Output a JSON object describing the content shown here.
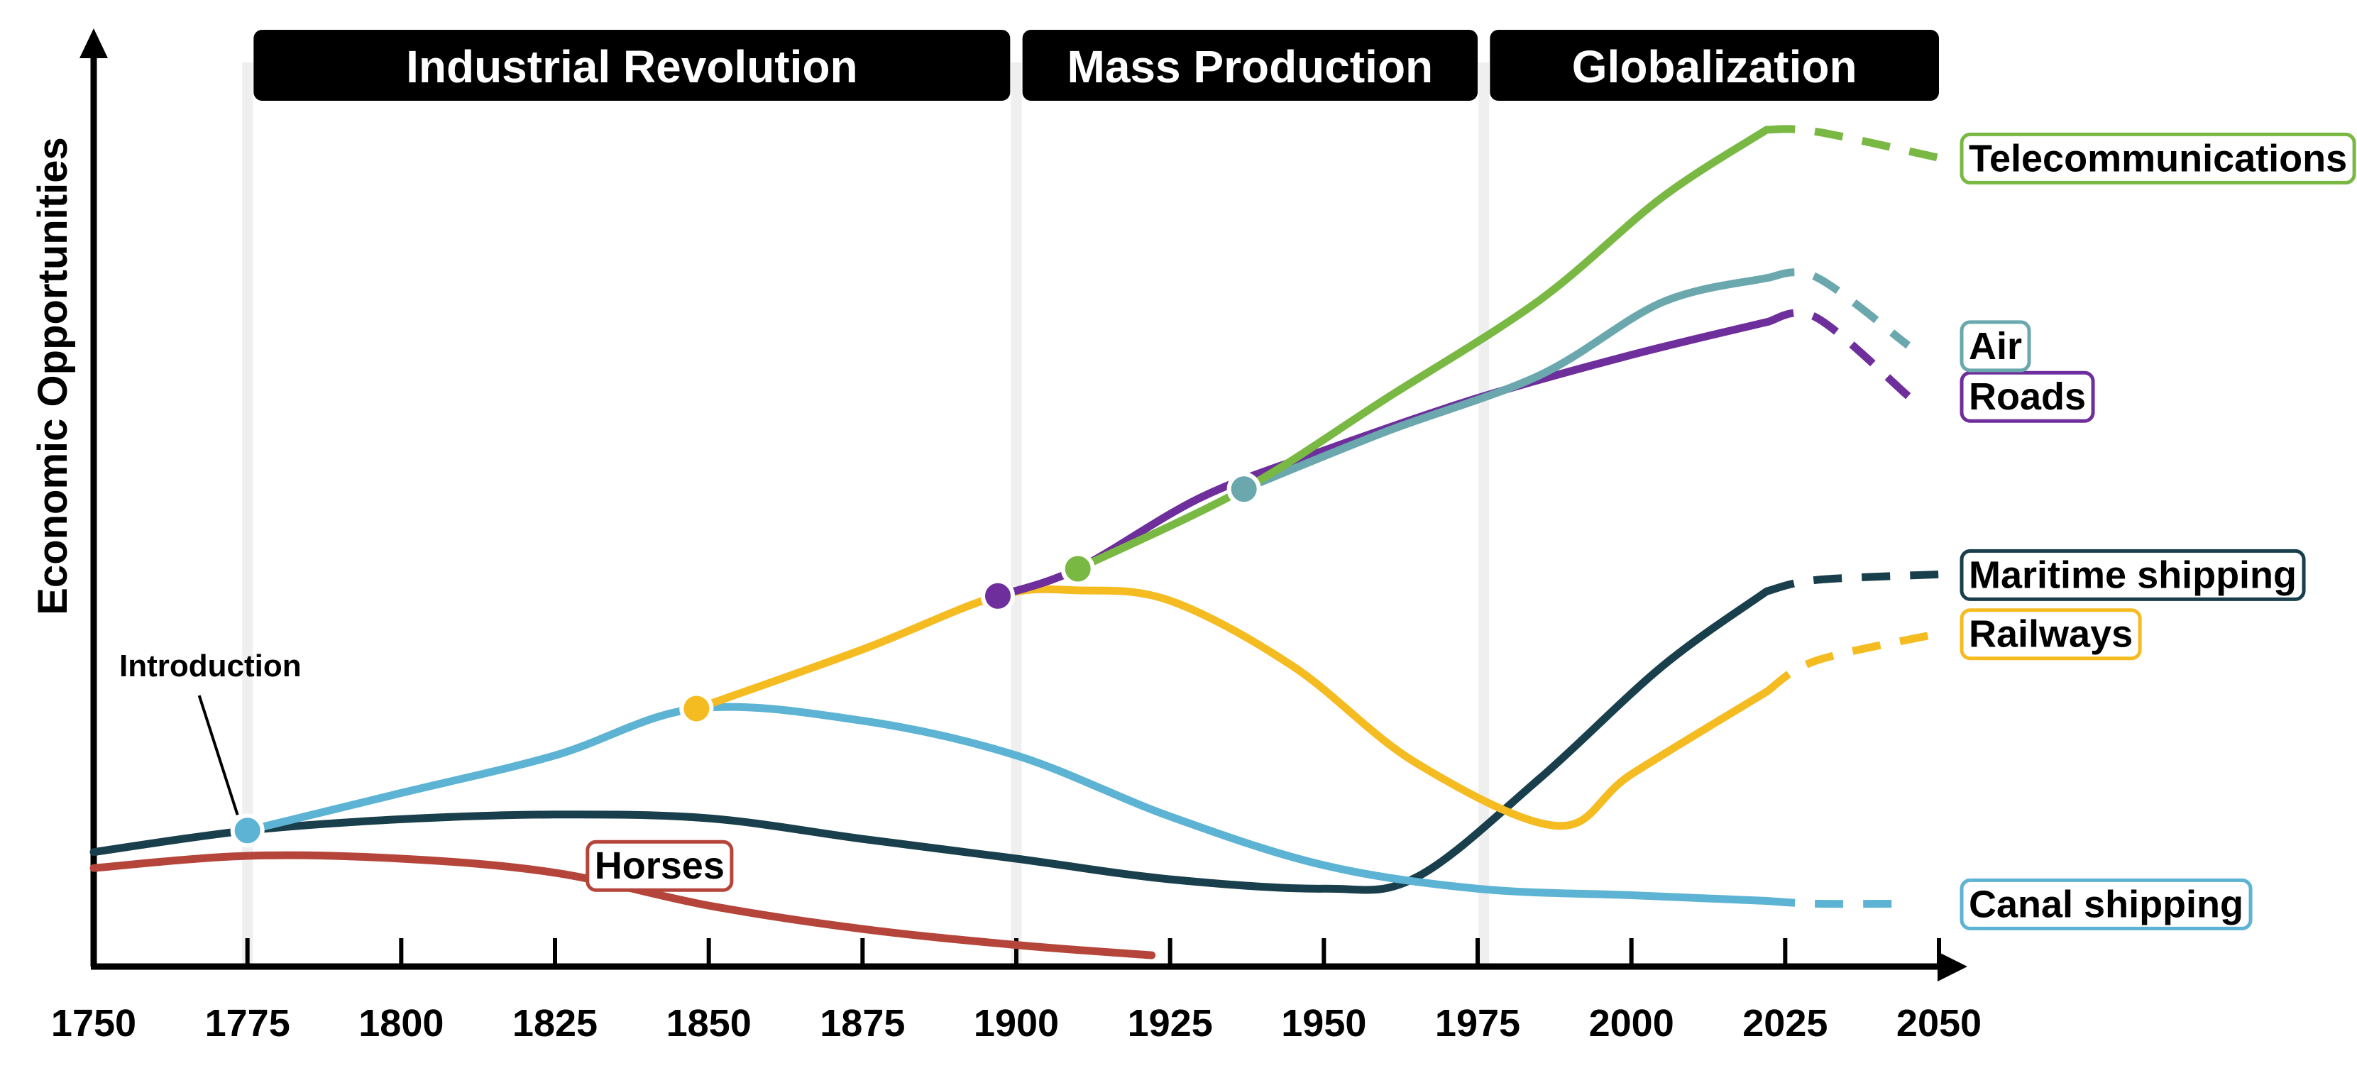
{
  "chart_data": {
    "type": "line",
    "ylabel": "Economic Opportunities",
    "xlabel": "",
    "x_ticks": [
      "1750",
      "1775",
      "1800",
      "1825",
      "1850",
      "1875",
      "1900",
      "1925",
      "1950",
      "1975",
      "2000",
      "2025",
      "2050"
    ],
    "xlim": [
      1750,
      2050
    ],
    "ylim": [
      0,
      100
    ],
    "grid": false,
    "eras": [
      {
        "label": "Industrial Revolution",
        "start": 1776,
        "end": 1899
      },
      {
        "label": "Mass Production",
        "start": 1901,
        "end": 1975
      },
      {
        "label": "Globalization",
        "start": 1977,
        "end": 2050
      }
    ],
    "era_dividers": [
      1775,
      1900,
      1976
    ],
    "annotation": {
      "text": "Introduction",
      "x": 1775,
      "y": 14.5
    },
    "projection_start": 2022,
    "series": [
      {
        "name": "Horses",
        "color": "#b5453a",
        "x": [
          1750,
          1775,
          1800,
          1825,
          1850,
          1875,
          1900,
          1922
        ],
        "y": [
          10.5,
          11.8,
          11.5,
          10,
          6.5,
          4,
          2.3,
          1.2
        ],
        "label_position": "inline"
      },
      {
        "name": "Canal shipping",
        "color": "#5cb3d3",
        "intro_year": 1775,
        "x": [
          1775,
          1800,
          1825,
          1848,
          1875,
          1900,
          1925,
          1950,
          1975,
          2000,
          2022,
          2030,
          2045
        ],
        "y": [
          14.5,
          18.5,
          22.5,
          27.5,
          26.2,
          22.5,
          16,
          10.8,
          8.3,
          7.6,
          7,
          6.7,
          6.7
        ]
      },
      {
        "name": "Maritime shipping",
        "color": "#183f4b",
        "x": [
          1750,
          1775,
          1800,
          1825,
          1850,
          1875,
          1900,
          1925,
          1950,
          1965,
          1985,
          2005,
          2022,
          2030,
          2050
        ],
        "y": [
          12.2,
          14.5,
          15.7,
          16.2,
          15.8,
          13.6,
          11.5,
          9.3,
          8.3,
          9.5,
          20,
          32,
          40,
          41.2,
          41.8
        ]
      },
      {
        "name": "Railways",
        "color": "#f5bc22",
        "intro_year": 1848,
        "x": [
          1848,
          1875,
          1897,
          1910,
          1925,
          1945,
          1965,
          1988,
          2000,
          2022,
          2030,
          2050
        ],
        "y": [
          27.5,
          33.8,
          39.5,
          40.1,
          39,
          32,
          21.7,
          15,
          20.5,
          29.3,
          32.6,
          35.5
        ]
      },
      {
        "name": "Roads",
        "color": "#6e2e9b",
        "intro_year": 1897,
        "x": [
          1897,
          1910,
          1930,
          1950,
          1975,
          2000,
          2022,
          2030,
          2045
        ],
        "y": [
          39.5,
          42.4,
          50,
          55,
          60.6,
          65.2,
          68.7,
          69.2,
          60.8
        ]
      },
      {
        "name": "Telecommunications",
        "color": "#79b843",
        "intro_year": 1910,
        "x": [
          1910,
          1937,
          1960,
          1985,
          2005,
          2022,
          2030,
          2050
        ],
        "y": [
          42.4,
          50.9,
          60.5,
          71,
          82,
          89.2,
          89,
          86.2
        ]
      },
      {
        "name": "Air",
        "color": "#6aa8ae",
        "intro_year": 1937,
        "x": [
          1937,
          1960,
          1985,
          2005,
          2022,
          2030,
          2045
        ],
        "y": [
          50.9,
          57,
          63,
          70.8,
          73.4,
          73.5,
          66.2
        ]
      }
    ]
  }
}
